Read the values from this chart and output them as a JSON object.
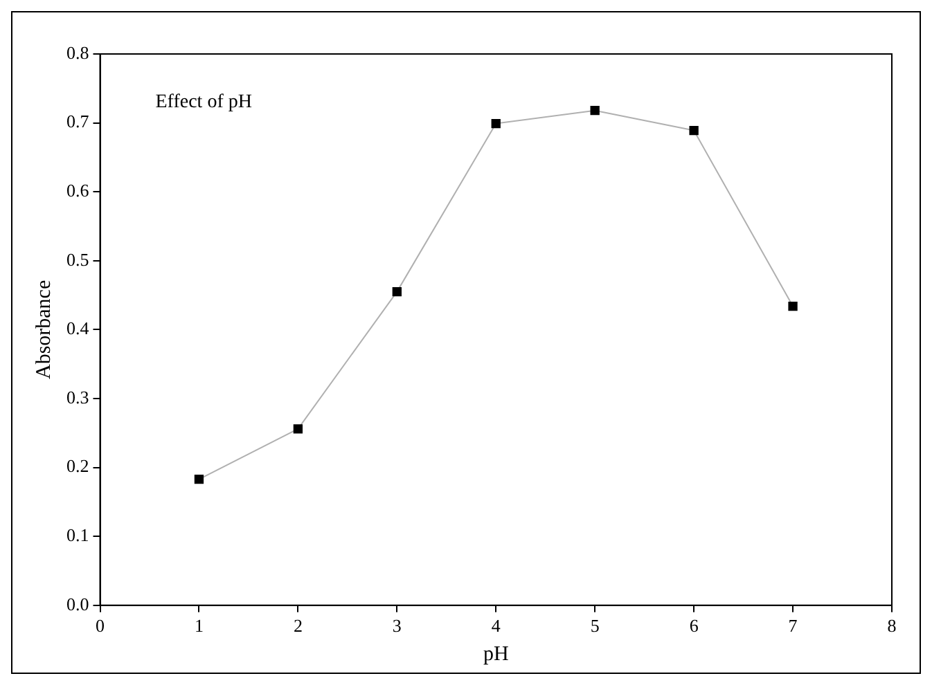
{
  "chart_data": {
    "type": "line",
    "xlabel": "pH",
    "ylabel": "Absorbance",
    "annotations": [
      "Effect of pH"
    ],
    "x": [
      1,
      2,
      3,
      4,
      5,
      6,
      7
    ],
    "series": [
      {
        "color": "#000000",
        "values": [
          0.183,
          0.256,
          0.455,
          0.699,
          0.718,
          0.689,
          0.434
        ]
      }
    ],
    "xlim": [
      0,
      8
    ],
    "xticks": [
      0,
      1,
      2,
      3,
      4,
      5,
      6,
      7,
      8
    ],
    "ylim": [
      0,
      0.8
    ],
    "yticks": [
      {
        "value": 0,
        "label": "0.0"
      },
      0.1,
      0.2,
      0.3,
      0.4,
      0.5,
      0.6,
      0.7,
      0.8
    ],
    "grid": false,
    "legend": false,
    "marker": "square",
    "line_style": "solid"
  }
}
